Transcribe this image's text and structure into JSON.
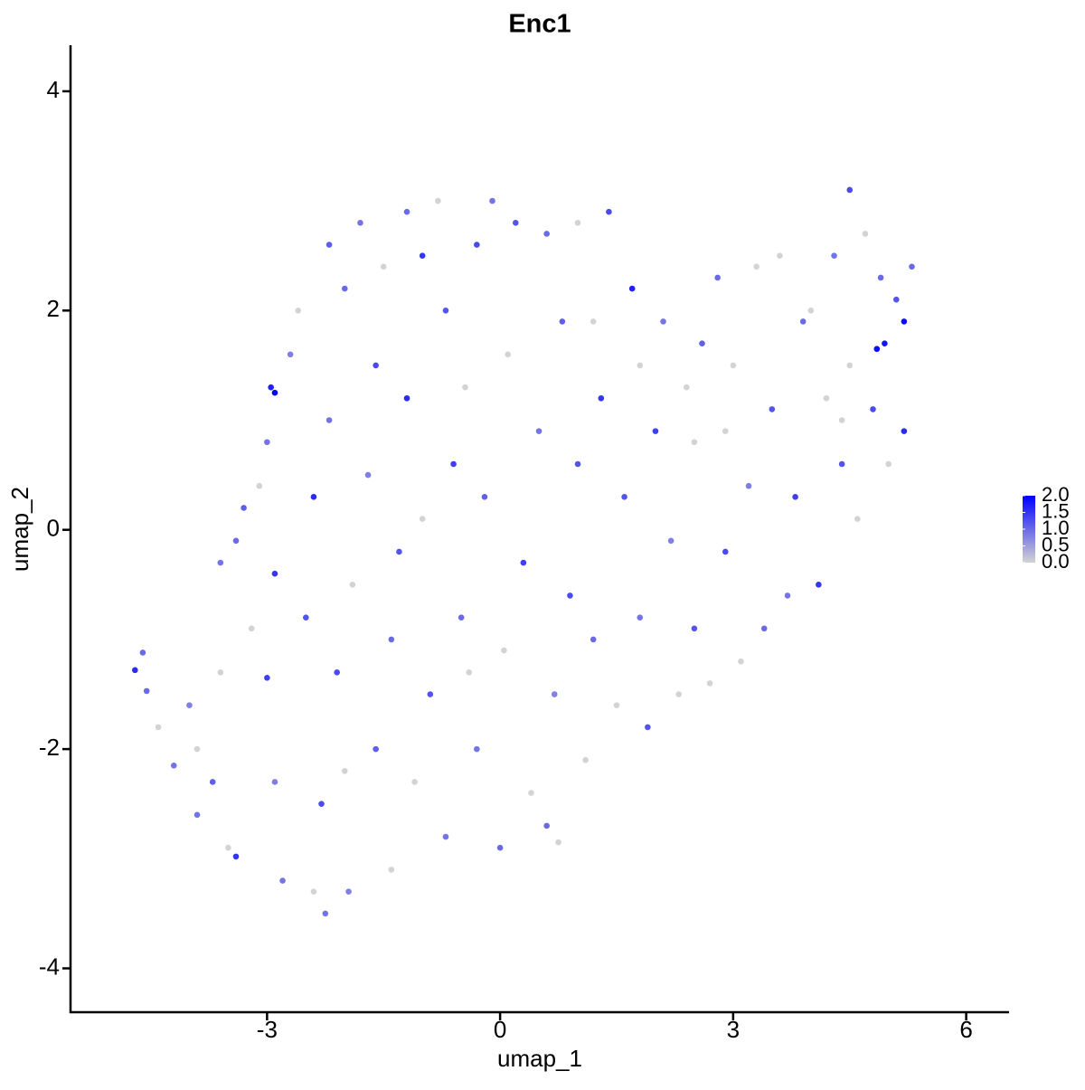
{
  "chart_data": {
    "type": "scatter",
    "title": "Enc1",
    "x_label": "umap_1",
    "y_label": "umap_2",
    "xlim": [
      -5.53,
      6.54
    ],
    "ylim": [
      -4.4,
      4.42
    ],
    "xticks": [
      -3,
      0,
      3,
      6
    ],
    "yticks": [
      -4,
      -2,
      0,
      2,
      4
    ],
    "low_color": "#d3d3d3",
    "high_color": "#0000ff",
    "color_lim": [
      0,
      2
    ],
    "color_ticks": [
      {
        "value": 0,
        "label": "0.0"
      },
      {
        "value": 0.5,
        "label": "0.5"
      },
      {
        "value": 1,
        "label": "1.0"
      },
      {
        "value": 1.5,
        "label": "1.5"
      },
      {
        "value": 2,
        "label": "2.0"
      }
    ],
    "x": [
      -4.7,
      -4.6,
      -4.55,
      -4.4,
      -4.2,
      -4.0,
      -3.9,
      -3.7,
      -3.5,
      -3.4,
      -3.6,
      -3.6,
      -3.4,
      -3.3,
      -3.2,
      -3.1,
      -3.0,
      -3.0,
      -2.95,
      -2.9,
      -2.9,
      -2.8,
      -2.7,
      -2.6,
      -2.5,
      -2.4,
      -2.4,
      -2.3,
      -2.25,
      -2.2,
      -2.2,
      -2.1,
      -2.0,
      -1.95,
      -1.9,
      -1.8,
      -1.7,
      -1.6,
      -1.6,
      -1.5,
      -1.4,
      -1.4,
      -1.3,
      -1.2,
      -1.2,
      -1.1,
      -1.0,
      -1.0,
      -0.9,
      -0.8,
      -0.7,
      -0.7,
      -0.6,
      -0.5,
      -0.45,
      -0.3,
      -0.3,
      -0.2,
      -0.1,
      0.0,
      0.05,
      0.1,
      0.2,
      0.3,
      0.4,
      0.5,
      0.6,
      0.6,
      0.7,
      0.8,
      0.9,
      1.0,
      1.0,
      1.1,
      1.2,
      1.3,
      1.4,
      1.5,
      1.6,
      1.7,
      1.8,
      1.8,
      1.9,
      2.0,
      2.1,
      2.2,
      2.3,
      2.4,
      2.5,
      2.5,
      2.6,
      2.7,
      2.8,
      2.9,
      3.0,
      3.1,
      3.2,
      3.3,
      3.4,
      3.5,
      3.6,
      3.7,
      3.8,
      3.9,
      4.0,
      4.1,
      4.2,
      4.3,
      4.4,
      4.5,
      4.5,
      4.6,
      4.7,
      4.8,
      4.9,
      4.95,
      5.0,
      5.1,
      5.2,
      5.3,
      5.2,
      4.85,
      -2.9,
      0.75,
      -3.9,
      -2.0,
      -0.4,
      1.2,
      2.9,
      4.4
    ],
    "y": [
      -1.28,
      -1.12,
      -1.47,
      -1.8,
      -2.15,
      -1.6,
      -2.6,
      -2.3,
      -2.9,
      -2.98,
      -1.3,
      -0.3,
      -0.1,
      0.2,
      -0.9,
      0.4,
      0.8,
      -1.35,
      1.3,
      -0.4,
      -2.3,
      -3.2,
      1.6,
      2.0,
      -0.8,
      0.3,
      -3.3,
      -2.5,
      -3.5,
      1.0,
      2.6,
      -1.3,
      2.2,
      -3.3,
      -0.5,
      2.8,
      0.5,
      -2.0,
      1.5,
      2.4,
      -1.0,
      -3.1,
      -0.2,
      2.9,
      1.2,
      -2.3,
      2.5,
      0.1,
      -1.5,
      3.0,
      2.0,
      -2.8,
      0.6,
      -0.8,
      1.3,
      2.6,
      -2.0,
      0.3,
      3.0,
      -2.9,
      -1.1,
      1.6,
      2.8,
      -0.3,
      -2.4,
      0.9,
      2.7,
      -2.7,
      -1.5,
      1.9,
      -0.6,
      2.8,
      0.6,
      -2.1,
      -1.0,
      1.2,
      2.9,
      -1.6,
      0.3,
      2.2,
      -0.8,
      1.5,
      -1.8,
      0.9,
      1.9,
      -0.1,
      -1.5,
      1.3,
      0.8,
      -0.9,
      1.7,
      -1.4,
      2.3,
      -0.2,
      1.5,
      -1.2,
      0.4,
      2.4,
      -0.9,
      1.1,
      2.5,
      -0.6,
      0.3,
      1.9,
      2.0,
      -0.5,
      1.2,
      2.5,
      0.6,
      3.1,
      1.5,
      0.1,
      2.7,
      1.1,
      2.3,
      1.7,
      0.6,
      2.1,
      1.9,
      2.4,
      0.9,
      1.65,
      1.25,
      -2.85,
      -2.0,
      -2.2,
      -1.3,
      1.9,
      0.9,
      1.0
    ],
    "values": [
      1.6,
      1.0,
      1.0,
      0,
      0.9,
      0.8,
      0.9,
      1.1,
      0,
      1.5,
      0,
      0.9,
      1.0,
      1.1,
      0,
      0,
      0.9,
      1.4,
      1.7,
      1.5,
      0.8,
      0.9,
      0.8,
      0,
      1.2,
      1.6,
      0,
      1.3,
      0.9,
      0.9,
      1.1,
      1.3,
      1.0,
      0.8,
      0,
      0.9,
      0.8,
      1.1,
      1.3,
      0,
      1.0,
      0,
      1.2,
      1.0,
      1.6,
      0,
      1.5,
      0,
      1.2,
      0,
      1.2,
      0.9,
      1.4,
      1.0,
      0,
      1.3,
      0.9,
      1.1,
      0.9,
      1.0,
      0,
      0,
      1.2,
      1.4,
      0,
      0.9,
      1.0,
      1.0,
      0.8,
      1.1,
      1.3,
      0,
      1.2,
      0,
      1.0,
      1.5,
      1.3,
      0,
      1.2,
      1.7,
      0.9,
      0,
      1.2,
      1.4,
      0.9,
      0.8,
      0,
      0,
      0,
      1.2,
      1.1,
      0,
      1.0,
      1.3,
      0,
      0,
      0.8,
      0,
      1.0,
      1.2,
      0,
      0.9,
      1.4,
      1.0,
      0,
      1.5,
      0,
      0.9,
      1.2,
      1.3,
      0,
      0,
      0,
      1.3,
      1.0,
      1.8,
      0,
      1.2,
      1.9,
      1.0,
      1.6,
      1.9,
      2.0,
      0,
      0,
      0,
      0,
      0,
      0,
      0
    ]
  }
}
